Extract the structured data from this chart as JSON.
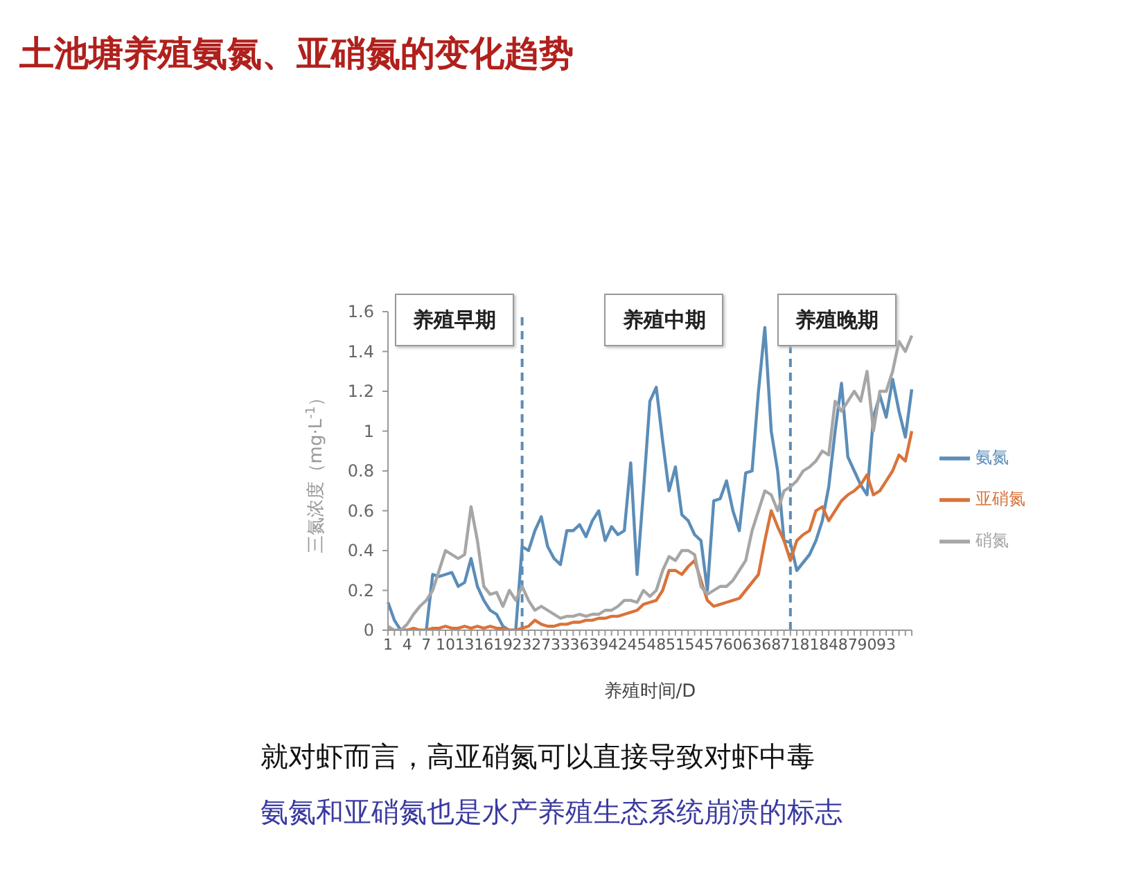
{
  "chart_data": {
    "type": "line",
    "title": "土池塘养殖氨氮、亚硝氮的变化趋势",
    "xlabel": "养殖时间/D",
    "ylabel": "三氮浓度（mg·L$^{-1}$）",
    "categories": [
      "1",
      null,
      null,
      "4",
      null,
      null,
      "7",
      null,
      null,
      "10",
      null,
      null,
      "13",
      null,
      null,
      "16",
      null,
      null,
      "19",
      null,
      null,
      "23",
      null,
      null,
      "27",
      null,
      null,
      "33",
      null,
      null,
      "36",
      null,
      null,
      "39",
      null,
      null,
      "42",
      null,
      null,
      "45",
      null,
      null,
      "48",
      null,
      null,
      "51",
      null,
      null,
      "54",
      null,
      null,
      "57",
      null,
      null,
      "60",
      null,
      null,
      "63",
      null,
      null,
      "68",
      null,
      null,
      "71",
      null,
      null,
      "81",
      null,
      null,
      "84",
      null,
      null,
      "87",
      null,
      null,
      "90",
      null,
      null,
      "93",
      null,
      null,
      null,
      null
    ],
    "series": [
      {
        "name": "氨氮",
        "color": "#5b8db8",
        "values": [
          0.14,
          0.05,
          0,
          0,
          0,
          0,
          0,
          0.28,
          0.27,
          0.28,
          0.29,
          0.22,
          0.24,
          0.36,
          0.22,
          0.15,
          0.1,
          0.08,
          0.02,
          0,
          0,
          0.42,
          0.4,
          0.5,
          0.57,
          0.42,
          0.36,
          0.33,
          0.5,
          0.5,
          0.53,
          0.47,
          0.55,
          0.6,
          0.45,
          0.52,
          0.48,
          0.5,
          0.84,
          0.28,
          0.7,
          1.15,
          1.22,
          0.95,
          0.7,
          0.82,
          0.58,
          0.55,
          0.48,
          0.45,
          0.2,
          0.65,
          0.66,
          0.75,
          0.6,
          0.5,
          0.79,
          0.8,
          1.2,
          1.52,
          1.0,
          0.8,
          0.45,
          0.44,
          0.3,
          0.34,
          0.38,
          0.45,
          0.55,
          0.72,
          1.0,
          1.24,
          0.87,
          0.8,
          0.73,
          0.68,
          1.07,
          1.18,
          1.07,
          1.26,
          1.1,
          0.97,
          1.21
        ]
      },
      {
        "name": "亚硝氮",
        "color": "#d9733a",
        "values": [
          0,
          0,
          0,
          0,
          0.01,
          0,
          0,
          0.01,
          0.01,
          0.02,
          0.01,
          0.01,
          0.02,
          0.01,
          0.02,
          0.01,
          0.02,
          0.01,
          0.01,
          0,
          0,
          0.01,
          0.02,
          0.05,
          0.03,
          0.02,
          0.02,
          0.03,
          0.03,
          0.04,
          0.04,
          0.05,
          0.05,
          0.06,
          0.06,
          0.07,
          0.07,
          0.08,
          0.09,
          0.1,
          0.13,
          0.14,
          0.15,
          0.2,
          0.3,
          0.3,
          0.28,
          0.32,
          0.35,
          0.25,
          0.15,
          0.12,
          0.13,
          0.14,
          0.15,
          0.16,
          0.2,
          0.24,
          0.28,
          0.45,
          0.6,
          0.52,
          0.45,
          0.35,
          0.45,
          0.48,
          0.5,
          0.6,
          0.62,
          0.55,
          0.6,
          0.65,
          0.68,
          0.7,
          0.73,
          0.78,
          0.68,
          0.7,
          0.75,
          0.8,
          0.88,
          0.85,
          1.0
        ]
      },
      {
        "name": "硝氮",
        "color": "#a6a6a6",
        "values": [
          0.02,
          0,
          0,
          0.03,
          0.08,
          0.12,
          0.15,
          0.2,
          0.3,
          0.4,
          0.38,
          0.36,
          0.38,
          0.62,
          0.45,
          0.22,
          0.18,
          0.19,
          0.12,
          0.2,
          0.15,
          0.22,
          0.15,
          0.1,
          0.12,
          0.1,
          0.08,
          0.06,
          0.07,
          0.07,
          0.08,
          0.07,
          0.08,
          0.08,
          0.1,
          0.1,
          0.12,
          0.15,
          0.15,
          0.14,
          0.2,
          0.17,
          0.2,
          0.3,
          0.37,
          0.35,
          0.4,
          0.4,
          0.38,
          0.22,
          0.18,
          0.2,
          0.22,
          0.22,
          0.25,
          0.3,
          0.35,
          0.5,
          0.6,
          0.7,
          0.68,
          0.6,
          0.7,
          0.72,
          0.75,
          0.8,
          0.82,
          0.85,
          0.9,
          0.88,
          1.15,
          1.1,
          1.15,
          1.2,
          1.15,
          1.3,
          1.0,
          1.2,
          1.2,
          1.3,
          1.45,
          1.4,
          1.48
        ]
      }
    ],
    "ylim": [
      0,
      1.6
    ],
    "yticks": [
      0,
      0.2,
      0.4,
      0.6,
      0.8,
      1,
      1.2,
      1.4,
      1.6
    ],
    "grid": false,
    "legend": "right",
    "marker": "none",
    "line_style": "solid",
    "ref_lines": [
      {
        "axis": "x",
        "value": "23",
        "color": "#5b8db8",
        "line_style": "dashed"
      },
      {
        "axis": "x",
        "value": "71",
        "color": "#5b8db8",
        "line_style": "dashed"
      }
    ],
    "annotations": [
      "养殖早期",
      "养殖中期",
      "养殖晚期",
      "就对虾而言，高亚硝氮可以直接导致对虾中毒",
      "氨氮和亚硝氮也是水产养殖生态系统崩溃的标志"
    ]
  }
}
